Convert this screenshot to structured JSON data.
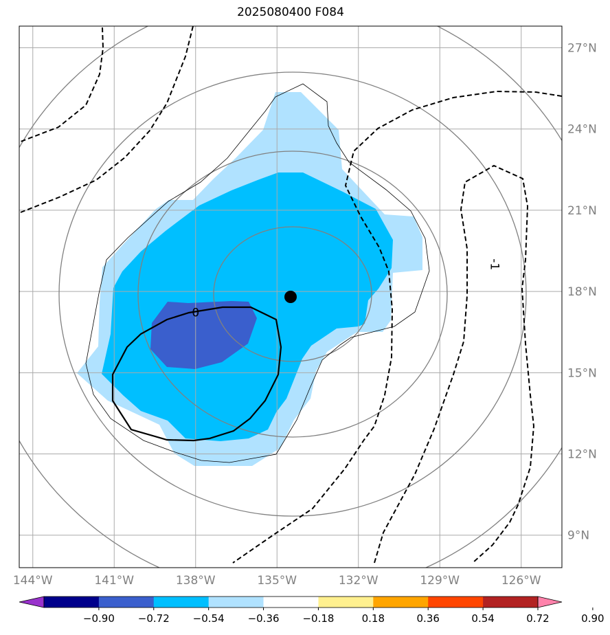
{
  "title": "2025080400 F084",
  "map": {
    "lon_range": [
      -144.5,
      -124.5
    ],
    "lat_range": [
      7.8,
      27.8
    ],
    "lat_ticks": [
      {
        "value": 27,
        "label": "27°N"
      },
      {
        "value": 24,
        "label": "24°N"
      },
      {
        "value": 21,
        "label": "21°N"
      },
      {
        "value": 18,
        "label": "18°N"
      },
      {
        "value": 15,
        "label": "15°N"
      },
      {
        "value": 12,
        "label": "12°N"
      },
      {
        "value": 9,
        "label": "9°N"
      }
    ],
    "lon_ticks": [
      {
        "value": -144,
        "label": "144°W"
      },
      {
        "value": -141,
        "label": "141°W"
      },
      {
        "value": -138,
        "label": "138°W"
      },
      {
        "value": -135,
        "label": "135°W"
      },
      {
        "value": -132,
        "label": "132°W"
      },
      {
        "value": -129,
        "label": "129°W"
      },
      {
        "value": -126,
        "label": "126°W"
      }
    ],
    "storm_center": {
      "lon": -134.5,
      "lat": 17.8
    },
    "contour_labels": [
      {
        "text": "0",
        "lon": -138.0,
        "lat": 17.2
      },
      {
        "text": "-1",
        "lon": -127.0,
        "lat": 19.0
      }
    ]
  },
  "colorbar": {
    "ticks": [
      "−0.90",
      "−0.72",
      "−0.54",
      "−0.36",
      "−0.18",
      "0.18",
      "0.36",
      "0.54",
      "0.72",
      "0.90"
    ],
    "colors": [
      "#9932cc",
      "#00008b",
      "#3a5fcd",
      "#00bfff",
      "#b0e2ff",
      "#ffffff",
      "#fff08f",
      "#ffa500",
      "#ff4500",
      "#b22222",
      "#ff82ab"
    ]
  },
  "colors": {
    "shade_light": "#b0e2ff",
    "shade_mid": "#00bfff",
    "shade_dark": "#3a5fcd",
    "grid": "#aaaaaa",
    "ring": "#808080"
  }
}
